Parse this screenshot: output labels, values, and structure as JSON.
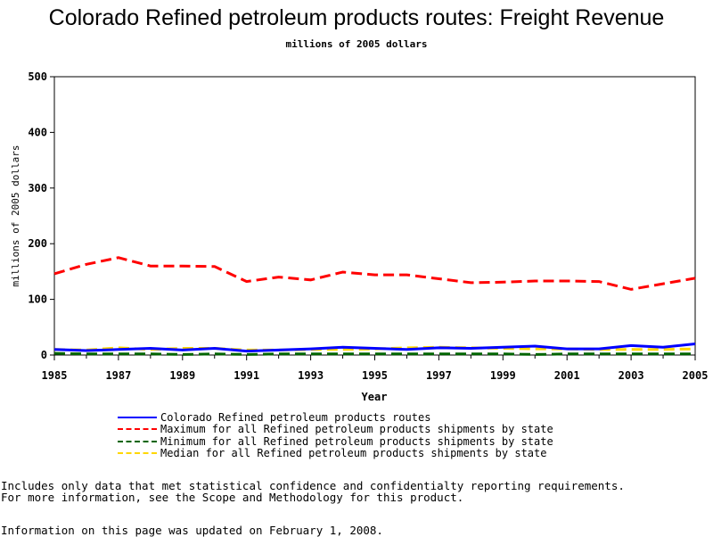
{
  "chart_data": {
    "type": "line",
    "title": "Colorado Refined petroleum products routes: Freight Revenue",
    "subtitle": "millions of 2005 dollars",
    "xlabel": "Year",
    "ylabel": "millions of 2005 dollars",
    "xlim": [
      1985,
      2005
    ],
    "ylim": [
      0,
      500
    ],
    "x_ticks": [
      "1985",
      "1987",
      "1989",
      "1991",
      "1993",
      "1995",
      "1997",
      "1999",
      "2001",
      "2003",
      "2005"
    ],
    "y_ticks": [
      "0",
      "100",
      "200",
      "300",
      "400",
      "500"
    ],
    "grid": false,
    "legend_position": "bottom",
    "x": [
      1985,
      1986,
      1987,
      1988,
      1989,
      1990,
      1991,
      1992,
      1993,
      1994,
      1995,
      1996,
      1997,
      1998,
      1999,
      2000,
      2001,
      2002,
      2003,
      2004,
      2005
    ],
    "series": [
      {
        "name": "Colorado Refined petroleum products routes",
        "color": "#0000ff",
        "dash": "solid",
        "values": [
          10,
          8,
          10,
          12,
          9,
          12,
          7,
          9,
          11,
          14,
          12,
          10,
          13,
          12,
          14,
          16,
          11,
          11,
          17,
          14,
          20
        ]
      },
      {
        "name": "Maximum for all Refined petroleum products shipments by state",
        "color": "#ff0000",
        "dash": "dashed",
        "values": [
          146,
          163,
          175,
          160,
          160,
          159,
          132,
          140,
          135,
          149,
          144,
          144,
          137,
          130,
          131,
          133,
          133,
          132,
          118,
          128,
          138
        ]
      },
      {
        "name": "Minimum for all Refined petroleum products shipments by state",
        "color": "#006400",
        "dash": "dashed",
        "values": [
          3,
          2,
          2,
          2,
          1,
          2,
          1,
          2,
          2,
          2,
          2,
          2,
          2,
          2,
          2,
          1,
          2,
          2,
          2,
          2,
          2
        ]
      },
      {
        "name": "Median for all Refined petroleum products shipments by state",
        "color": "#ffd700",
        "dash": "dashed",
        "values": [
          10,
          9,
          13,
          10,
          12,
          12,
          9,
          9,
          10,
          10,
          11,
          13,
          14,
          13,
          12,
          11,
          11,
          10,
          10,
          10,
          11
        ]
      }
    ]
  },
  "footnotes": [
    "Includes only data that met statistical confidence and confidentialty reporting requirements.",
    "For more information, see the Scope and Methodology for this product.",
    "Information on this page was updated on February 1, 2008."
  ]
}
